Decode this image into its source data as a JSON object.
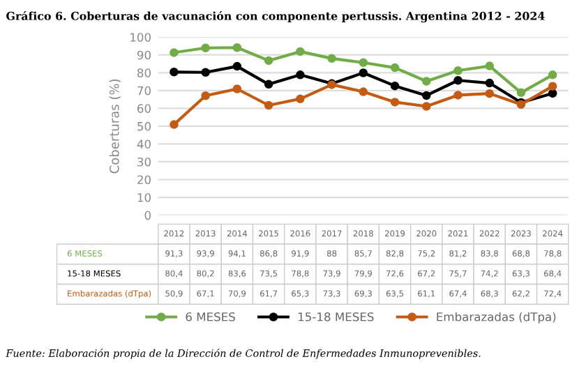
{
  "chart_data": {
    "type": "line",
    "title": "Gráfico 6. Coberturas de vacunación con componente pertussis. Argentina 2012 - 2024",
    "ylabel": "Coberturas (%)",
    "categories": [
      "2012",
      "2013",
      "2014",
      "2015",
      "2016",
      "2017",
      "2018",
      "2019",
      "2020",
      "2021",
      "2022",
      "2023",
      "2024"
    ],
    "series": [
      {
        "name": "6 MESES",
        "color": "#70ad47",
        "values": [
          91.3,
          93.9,
          94.1,
          86.8,
          91.9,
          88,
          85.7,
          82.8,
          75.2,
          81.2,
          83.8,
          68.8,
          78.8
        ],
        "value_labels": [
          "91,3",
          "93,9",
          "94,1",
          "86,8",
          "91,9",
          "88",
          "85,7",
          "82,8",
          "75,2",
          "81,2",
          "83,8",
          "68,8",
          "78,8"
        ]
      },
      {
        "name": "15-18 MESES",
        "color": "#000000",
        "values": [
          80.4,
          80.2,
          83.6,
          73.5,
          78.8,
          73.9,
          79.9,
          72.6,
          67.2,
          75.7,
          74.2,
          63.3,
          68.4
        ],
        "value_labels": [
          "80,4",
          "80,2",
          "83,6",
          "73,5",
          "78,8",
          "73,9",
          "79,9",
          "72,6",
          "67,2",
          "75,7",
          "74,2",
          "63,3",
          "68,4"
        ]
      },
      {
        "name": "Embarazadas (dTpa)",
        "color": "#c55a11",
        "values": [
          50.9,
          67.1,
          70.9,
          61.7,
          65.3,
          73.3,
          69.3,
          63.5,
          61.1,
          67.4,
          68.3,
          62.2,
          72.4
        ],
        "value_labels": [
          "50,9",
          "67,1",
          "70,9",
          "61,7",
          "65,3",
          "73,3",
          "69,3",
          "63,5",
          "61,1",
          "67,4",
          "68,3",
          "62,2",
          "72,4"
        ]
      }
    ],
    "ylim": [
      0,
      100
    ],
    "yticks": [
      0,
      10,
      20,
      30,
      40,
      50,
      60,
      70,
      80,
      90,
      100
    ],
    "grid": "y",
    "legend": "bottom",
    "marker": "circle",
    "line_style": "solid",
    "annotations": [
      "Fuente: Elaboración propia de la Dirección de Control de Enfermedades Inmunoprevenibles."
    ]
  }
}
